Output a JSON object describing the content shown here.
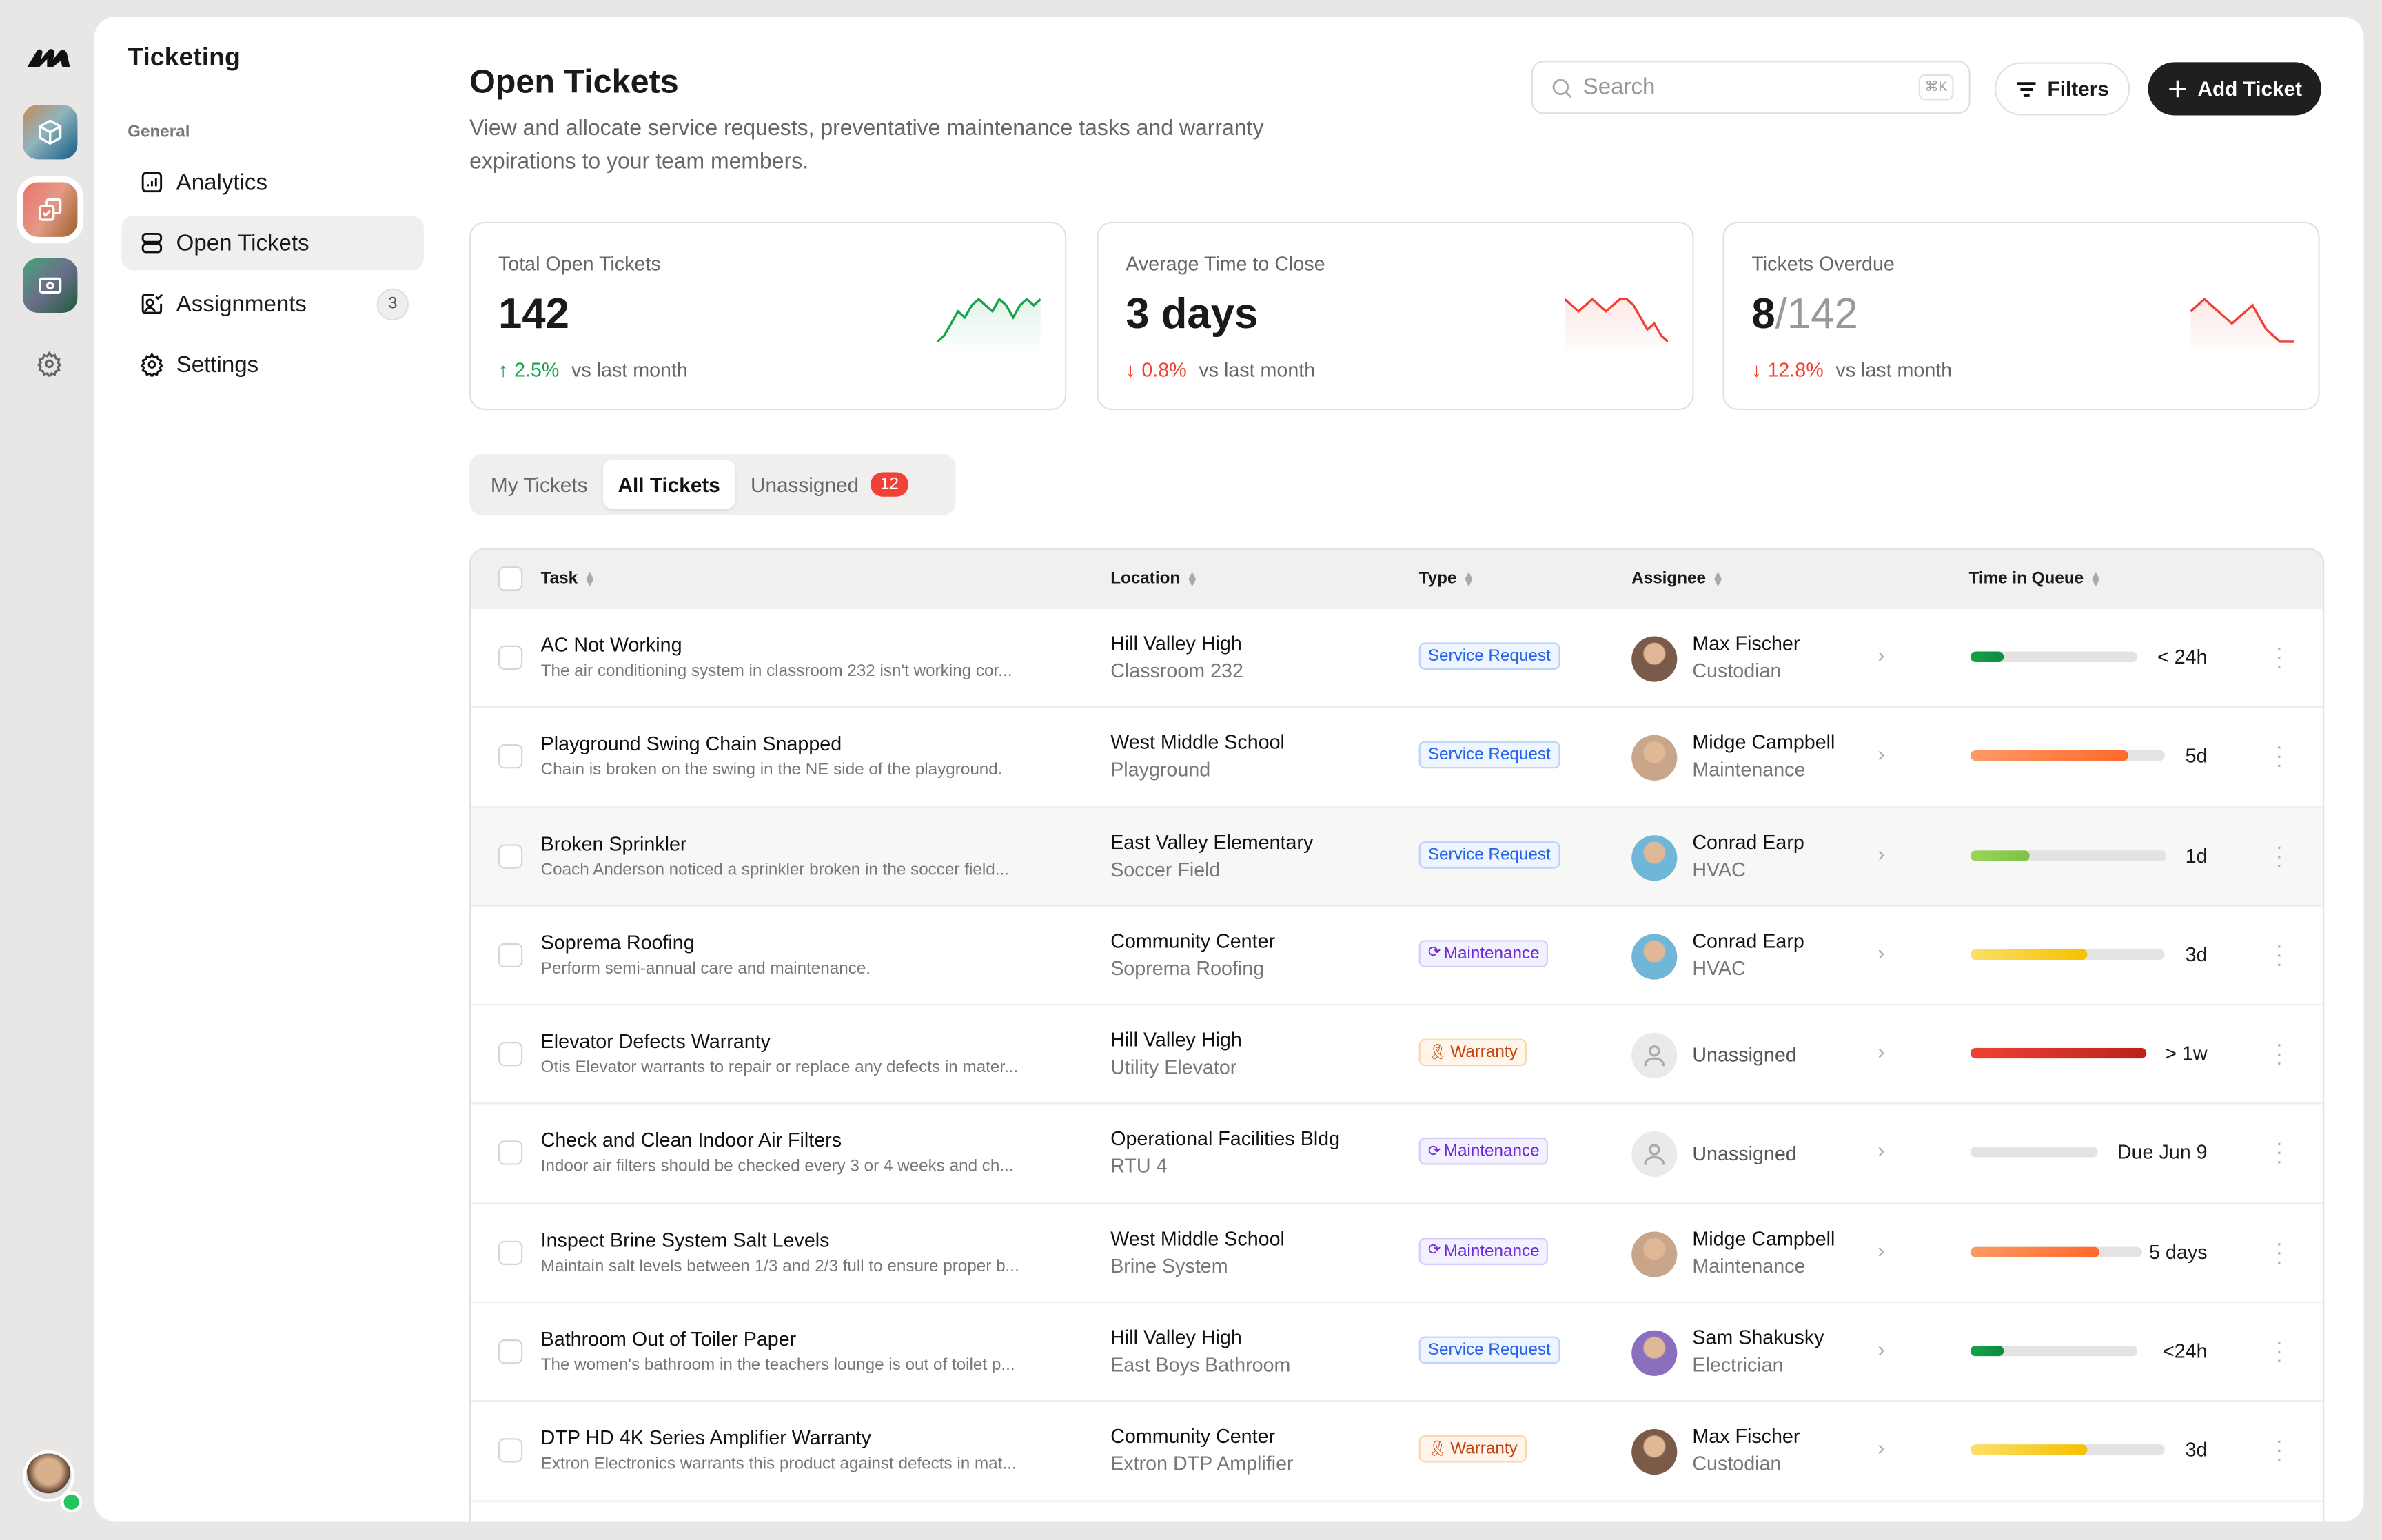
{
  "colors": {
    "accent_dark": "#1f1f1d",
    "up": "#16a34a",
    "down": "#ef4136",
    "service": "#2563eb",
    "maintenance": "#6d28d9",
    "warranty": "#c2410c"
  },
  "rail": {
    "apps": [
      {
        "icon": "cube-icon"
      },
      {
        "icon": "tickets-icon",
        "selected": true
      },
      {
        "icon": "money-icon"
      }
    ],
    "settings_icon": "gear-icon"
  },
  "sidebar": {
    "title": "Ticketing",
    "group": "General",
    "items": [
      {
        "label": "Analytics",
        "icon": "chart-icon"
      },
      {
        "label": "Open Tickets",
        "icon": "rows-icon",
        "active": true
      },
      {
        "label": "Assignments",
        "icon": "assign-icon",
        "count": "3"
      },
      {
        "label": "Settings",
        "icon": "gear-icon"
      }
    ]
  },
  "header": {
    "title": "Open Tickets",
    "subtitle": "View and allocate service requests, preventative maintenance tasks and warranty expirations to your team members.",
    "search_placeholder": "Search",
    "search_shortcut": "⌘K",
    "filters_label": "Filters",
    "add_label": "Add Ticket"
  },
  "stats": [
    {
      "label": "Total Open Tickets",
      "value": "142",
      "denominator": "",
      "change": "2.5%",
      "direction": "up",
      "suffix": "vs last month",
      "trend": [
        2,
        3,
        5,
        7,
        6,
        8,
        9,
        8,
        7,
        9,
        8,
        6,
        8,
        9,
        8,
        9
      ]
    },
    {
      "label": "Average Time to Close",
      "value": "3 days",
      "denominator": "",
      "change": "0.8%",
      "direction": "down",
      "suffix": "vs last month",
      "trend": [
        9,
        8,
        7,
        8,
        9,
        8,
        7,
        8,
        9,
        9,
        8,
        6,
        4,
        5,
        3,
        2
      ]
    },
    {
      "label": "Tickets Overdue",
      "value": "8",
      "denominator": "/142",
      "change": "12.8%",
      "direction": "down",
      "suffix": "vs last month",
      "trend": [
        7,
        8,
        9,
        8,
        7,
        6,
        5,
        6,
        7,
        8,
        6,
        4,
        3,
        2,
        2,
        2
      ]
    }
  ],
  "tabs": [
    {
      "label": "My Tickets"
    },
    {
      "label": "All Tickets",
      "active": true
    },
    {
      "label": "Unassigned",
      "count": "12"
    }
  ],
  "table": {
    "columns": [
      "Task",
      "Location",
      "Type",
      "Assignee",
      "Time in Queue"
    ],
    "rows": [
      {
        "task": "AC Not Working",
        "desc": "The air conditioning system in classroom 232 isn't working cor...",
        "location": "Hill Valley High",
        "sublocation": "Classroom 232",
        "type": "Service Request",
        "assignee": "Max Fischer",
        "role": "Custodian",
        "queue": "< 24h",
        "progress": 0.2,
        "bar": "green"
      },
      {
        "task": "Playground Swing Chain Snapped",
        "desc": "Chain is broken on the swing in the NE side of the playground.",
        "location": "West Middle School",
        "sublocation": "Playground",
        "type": "Service Request",
        "assignee": "Midge Campbell",
        "role": "Maintenance",
        "queue": "5d",
        "progress": 0.81,
        "bar": "orange"
      },
      {
        "task": "Broken Sprinkler",
        "desc": "Coach Anderson noticed a sprinkler broken in the soccer field...",
        "location": "East Valley Elementary",
        "sublocation": "Soccer Field",
        "type": "Service Request",
        "assignee": "Conrad Earp",
        "role": "HVAC",
        "queue": "1d",
        "progress": 0.3,
        "bar": "lime",
        "hover": true
      },
      {
        "task": "Soprema Roofing",
        "desc": "Perform semi-annual care and maintenance.",
        "location": "Community Center",
        "sublocation": "Soprema Roofing",
        "type": "Maintenance",
        "assignee": "Conrad Earp",
        "role": "HVAC",
        "queue": "3d",
        "progress": 0.6,
        "bar": "yellow"
      },
      {
        "task": "Elevator Defects Warranty",
        "desc": "Otis Elevator warrants to repair or replace any defects in mater...",
        "location": "Hill Valley High",
        "sublocation": "Utility Elevator",
        "type": "Warranty",
        "assignee": "Unassigned",
        "role": "",
        "queue": "> 1w",
        "progress": 1.0,
        "bar": "red"
      },
      {
        "task": "Check and Clean Indoor Air Filters",
        "desc": "Indoor air filters should be checked every 3 or 4 weeks and ch...",
        "location": "Operational Facilities Bldg",
        "sublocation": "RTU 4",
        "type": "Maintenance",
        "assignee": "Unassigned",
        "role": "",
        "queue": "Due Jun 9",
        "progress": 0,
        "bar": "none"
      },
      {
        "task": "Inspect Brine System Salt Levels",
        "desc": "Maintain salt levels between 1/3 and 2/3 full to ensure proper b...",
        "location": "West Middle School",
        "sublocation": "Brine System",
        "type": "Maintenance",
        "assignee": "Midge Campbell",
        "role": "Maintenance",
        "queue": "5 days",
        "progress": 0.75,
        "bar": "orange"
      },
      {
        "task": "Bathroom Out of Toiler Paper",
        "desc": "The women's bathroom in the teachers lounge is out of toilet p...",
        "location": "Hill Valley High",
        "sublocation": "East Boys Bathroom",
        "type": "Service Request",
        "assignee": "Sam Shakusky",
        "role": "Electrician",
        "queue": "<24h",
        "progress": 0.2,
        "bar": "green"
      },
      {
        "task": "DTP HD 4K Series Amplifier Warranty",
        "desc": "Extron Electronics warrants this product against defects in mat...",
        "location": "Community Center",
        "sublocation": "Extron DTP Amplifier",
        "type": "Warranty",
        "assignee": "Max Fischer",
        "role": "Custodian",
        "queue": "3d",
        "progress": 0.6,
        "bar": "yellow"
      }
    ]
  }
}
